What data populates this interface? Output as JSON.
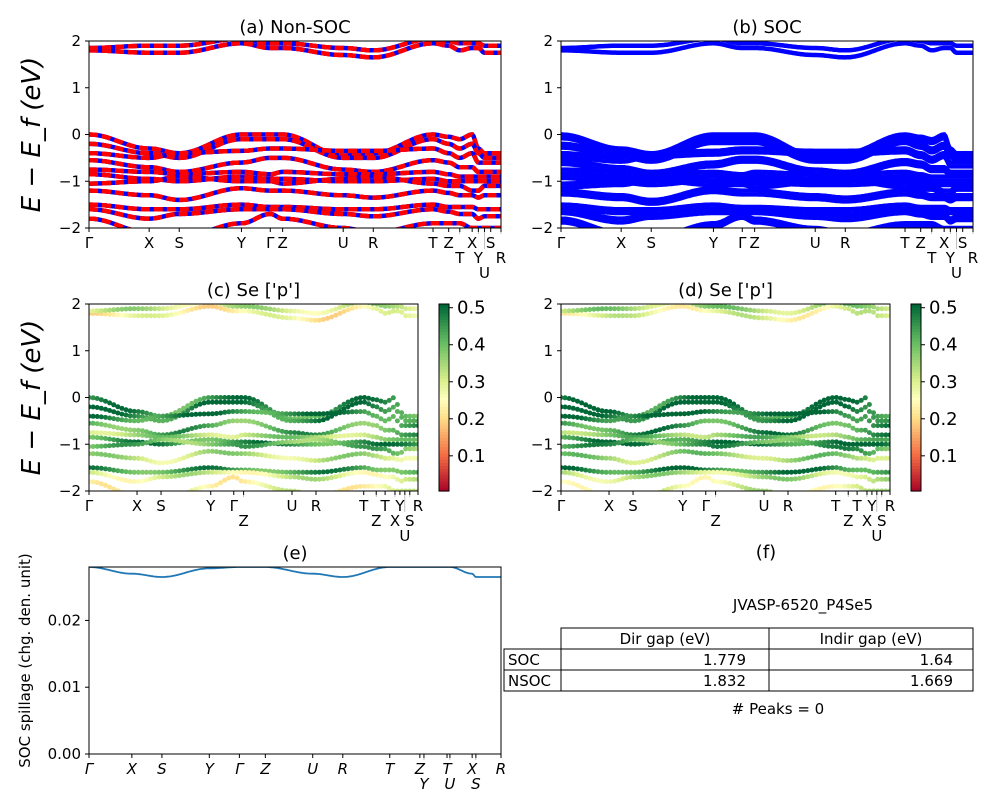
{
  "kpath_labels_a": [
    "Γ",
    "X",
    "S",
    "Y",
    "Γ",
    "Z",
    "U",
    "R",
    "T",
    "Z",
    "T",
    "X",
    "Y",
    "U",
    "S",
    "R"
  ],
  "kpath_labels_e": [
    "Γ",
    "X",
    "S",
    "Y",
    "Γ",
    "Z",
    "U",
    "R",
    "T",
    "Z",
    "Y",
    "T",
    "U",
    "X",
    "S",
    "R"
  ],
  "kpath_pos_a": [
    0,
    0.146,
    0.219,
    0.37,
    0.44,
    0.47,
    0.617,
    0.69,
    0.835,
    0.873,
    0.9,
    0.93,
    0.945,
    0.96,
    0.975,
    1.0
  ],
  "kpath_pos_e": [
    0,
    0.104,
    0.177,
    0.292,
    0.365,
    0.428,
    0.543,
    0.616,
    0.73,
    0.803,
    0.813,
    0.869,
    0.876,
    0.93,
    0.939,
    1.0
  ],
  "chart_data": [
    {
      "id": "a",
      "type": "line",
      "title": "(a) Non-SOC",
      "ylabel": "E − E_f (eV)",
      "ylim": [
        -2,
        2
      ],
      "yticks": [
        "−2",
        "−1",
        "0",
        "1",
        "2"
      ],
      "colors": {
        "spin_up": "#0000ff",
        "spin_down": "#ff0000"
      }
    },
    {
      "id": "b",
      "type": "line",
      "title": "(b) SOC",
      "ylim": [
        -2,
        2
      ],
      "yticks": [
        "−2",
        "−1",
        "0",
        "1",
        "2"
      ],
      "colors": {
        "bands": "#0000ff"
      }
    },
    {
      "id": "c",
      "type": "scatter",
      "title": "(c)  Se ['p']",
      "ylabel": "E − E_f (eV)",
      "ylim": [
        -2,
        2
      ],
      "yticks": [
        "−2",
        "−1",
        "0",
        "1",
        "2"
      ],
      "colorbar": {
        "ticks": [
          "0.1",
          "0.2",
          "0.3",
          "0.4",
          "0.5"
        ],
        "range": [
          0.005,
          0.51
        ],
        "colormap": "RdYlGn"
      }
    },
    {
      "id": "d",
      "type": "scatter",
      "title": "(d) Se ['p']",
      "ylim": [
        -2,
        2
      ],
      "yticks": [
        "−2",
        "−1",
        "0",
        "1",
        "2"
      ],
      "colorbar": {
        "ticks": [
          "0.1",
          "0.2",
          "0.3",
          "0.4",
          "0.5"
        ],
        "range": [
          0.005,
          0.51
        ],
        "colormap": "RdYlGn"
      }
    },
    {
      "id": "e",
      "type": "line",
      "title": "(e)",
      "ylabel": "SOC spillage (chg. den. unit)",
      "ylim": [
        0,
        0.028
      ],
      "yticks": [
        "0.00",
        "0.01",
        "0.02"
      ],
      "color": "#1f77b4",
      "values": [
        0.028,
        0.027,
        0.0265,
        0.0278,
        0.028,
        0.028,
        0.027,
        0.0265,
        0.028,
        0.028,
        0.028,
        0.028,
        0.028,
        0.027,
        0.0265,
        0.0265
      ]
    }
  ],
  "bands": [
    {
      "w": 0.45,
      "e": [
        0,
        -0.3,
        -0.4,
        0,
        0,
        0,
        -0.45,
        -0.4,
        0,
        -0.05,
        -0.1,
        0,
        -0.3,
        -0.4,
        -0.4,
        -0.4
      ]
    },
    {
      "w": 0.48,
      "e": [
        -0.2,
        -0.4,
        -0.5,
        -0.1,
        -0.1,
        -0.1,
        -0.5,
        -0.5,
        -0.1,
        -0.2,
        -0.3,
        -0.2,
        -0.4,
        -0.5,
        -0.5,
        -0.5
      ]
    },
    {
      "w": 0.47,
      "e": [
        -0.4,
        -0.5,
        -0.4,
        -0.35,
        -0.3,
        -0.3,
        -0.35,
        -0.35,
        -0.3,
        -0.4,
        -0.5,
        -0.4,
        -0.6,
        -0.6,
        -0.6,
        -0.6
      ]
    },
    {
      "w": 0.42,
      "e": [
        -0.55,
        -0.7,
        -0.8,
        -0.6,
        -0.5,
        -0.5,
        -0.75,
        -0.8,
        -0.55,
        -0.6,
        -0.7,
        -0.7,
        -0.8,
        -0.8,
        -0.8,
        -0.8
      ]
    },
    {
      "w": 0.35,
      "e": [
        -0.75,
        -0.8,
        -0.85,
        -0.8,
        -0.85,
        -0.8,
        -0.85,
        -0.85,
        -0.8,
        -0.85,
        -0.9,
        -0.9,
        -0.9,
        -0.9,
        -0.9,
        -0.9
      ]
    },
    {
      "w": 0.45,
      "e": [
        -0.85,
        -0.95,
        -1.0,
        -0.9,
        -0.95,
        -0.95,
        -1.0,
        -1.0,
        -0.95,
        -1.0,
        -1.0,
        -1.0,
        -1.0,
        -1.0,
        -1.0,
        -1.0
      ]
    },
    {
      "w": 0.4,
      "e": [
        -1.05,
        -1.0,
        -0.9,
        -1.0,
        -1.0,
        -1.05,
        -0.95,
        -0.9,
        -1.05,
        -1.1,
        -1.1,
        -1.2,
        -1.2,
        -1.1,
        -1.1,
        -1.1
      ]
    },
    {
      "w": 0.33,
      "e": [
        -1.2,
        -1.3,
        -1.4,
        -1.15,
        -1.2,
        -1.2,
        -1.3,
        -1.35,
        -1.2,
        -1.25,
        -1.3,
        -1.3,
        -1.35,
        -1.3,
        -1.3,
        -1.3
      ]
    },
    {
      "w": 0.44,
      "e": [
        -1.5,
        -1.6,
        -1.6,
        -1.5,
        -1.55,
        -1.55,
        -1.6,
        -1.6,
        -1.5,
        -1.55,
        -1.55,
        -1.55,
        -1.6,
        -1.6,
        -1.6,
        -1.6
      ]
    },
    {
      "w": 0.3,
      "e": [
        -1.6,
        -1.8,
        -1.7,
        -1.6,
        -1.6,
        -1.6,
        -1.7,
        -1.75,
        -1.6,
        -1.65,
        -1.7,
        -1.7,
        -1.8,
        -1.75,
        -1.75,
        -1.75
      ]
    },
    {
      "w": 0.27,
      "e": [
        -1.8,
        -2.1,
        -2.2,
        -1.9,
        -1.7,
        -1.8,
        -2.0,
        -2.1,
        -1.9,
        -1.9,
        -1.9,
        -2.0,
        -2.0,
        -2.0,
        -2.0,
        -2.0
      ]
    },
    {
      "w": 0.25,
      "e": [
        1.8,
        1.75,
        1.75,
        1.95,
        1.85,
        1.85,
        1.7,
        1.65,
        1.95,
        1.9,
        1.8,
        1.85,
        1.85,
        1.75,
        1.75,
        1.75
      ]
    },
    {
      "w": 0.32,
      "e": [
        1.85,
        1.9,
        1.9,
        2.05,
        1.95,
        1.95,
        1.85,
        1.8,
        2.05,
        2.0,
        1.95,
        1.95,
        1.95,
        1.9,
        1.9,
        1.9
      ]
    }
  ],
  "panel_f": {
    "title": "(f)",
    "material": "JVASP-6520_P4Se5",
    "table": {
      "columns": [
        "Dir gap (eV)",
        "Indir gap (eV)"
      ],
      "rows": [
        {
          "label": "SOC",
          "values": [
            "1.779",
            "1.64"
          ]
        },
        {
          "label": "NSOC",
          "values": [
            "1.832",
            "1.669"
          ]
        }
      ]
    },
    "peaks": "# Peaks = 0"
  }
}
